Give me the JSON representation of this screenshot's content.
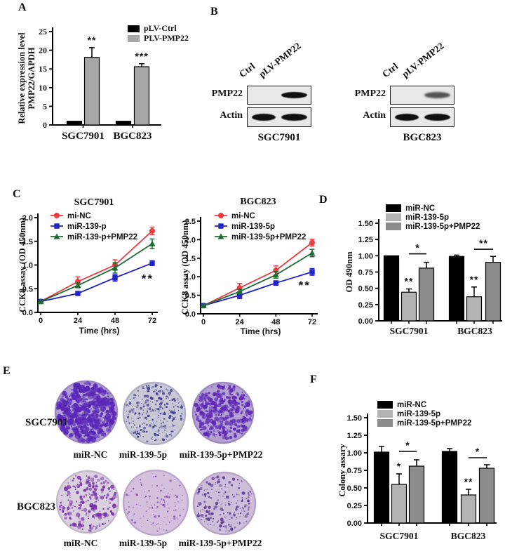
{
  "panels": {
    "A": {
      "label": "A"
    },
    "B": {
      "label": "B"
    },
    "C": {
      "label": "C"
    },
    "D": {
      "label": "D"
    },
    "E": {
      "label": "E"
    },
    "F": {
      "label": "F"
    }
  },
  "panel_b": {
    "blot_sets": [
      {
        "cell_line": "SGC7901",
        "lanes": [
          "Ctrl",
          "pLV-PMP22"
        ],
        "rows": [
          {
            "protein": "PMP22",
            "bands": [
              "none",
              "strong"
            ]
          },
          {
            "protein": "Actin",
            "bands": [
              "strong",
              "strong"
            ]
          }
        ]
      },
      {
        "cell_line": "BGC823",
        "lanes": [
          "Ctrl",
          "pLV-PMP22"
        ],
        "rows": [
          {
            "protein": "PMP22",
            "bands": [
              "none",
              "medium"
            ]
          },
          {
            "protein": "Actin",
            "bands": [
              "strong",
              "strong"
            ]
          }
        ]
      }
    ]
  },
  "panel_e": {
    "rows": [
      {
        "cell_line": "SGC7901",
        "dishes": [
          {
            "label": "miR-NC",
            "density": 520,
            "dot_min": 1.2,
            "dot_max": 4.5,
            "dot_color": "#5a27b8",
            "bg": "#b2a0d2",
            "rim": "#9c87c2",
            "seed": 11
          },
          {
            "label": "miR-139-5p",
            "density": 300,
            "dot_min": 0.6,
            "dot_max": 2.2,
            "dot_color": "#3c3c94",
            "bg": "#c9c9d6",
            "rim": "#b0b0c4",
            "seed": 22
          },
          {
            "label": "miR-139-5p+PMP22",
            "density": 380,
            "dot_min": 1.0,
            "dot_max": 3.4,
            "dot_color": "#6029b8",
            "bg": "#b3a1d0",
            "rim": "#9d88c0",
            "seed": 33
          }
        ]
      },
      {
        "cell_line": "BGC823",
        "dishes": [
          {
            "label": "miR-NC",
            "density": 240,
            "dot_min": 0.8,
            "dot_max": 3.2,
            "dot_color": "#7a2fae",
            "bg": "#d9d1de",
            "rim": "#c4b8cc",
            "seed": 44
          },
          {
            "label": "miR-139-5p",
            "density": 120,
            "dot_min": 0.6,
            "dot_max": 1.8,
            "dot_color": "#8a4cae",
            "bg": "#d5c0de",
            "rim": "#bfa6cc",
            "seed": 55
          },
          {
            "label": "miR-139-5p+PMP22",
            "density": 210,
            "dot_min": 0.7,
            "dot_max": 2.4,
            "dot_color": "#5f3a9a",
            "bg": "#cfbeda",
            "rim": "#b9a4c8",
            "seed": 66
          }
        ]
      }
    ]
  },
  "chart_data": [
    {
      "id": "A",
      "type": "bar",
      "categories": [
        "SGC7901",
        "BGC823"
      ],
      "series": [
        {
          "name": "pLV-Ctrl",
          "color": "#000000",
          "values": [
            1.0,
            1.0
          ],
          "errors": [
            0,
            0
          ]
        },
        {
          "name": "PLV-PMP22",
          "color": "#a6a6a6",
          "values": [
            18.1,
            15.6
          ],
          "errors": [
            2.6,
            0.8
          ]
        }
      ],
      "ylabel": [
        "Relative expression level",
        "PMP22/GAPDH"
      ],
      "ylim": [
        0,
        25
      ],
      "yticks": [
        "0",
        "5",
        "10",
        "15",
        "20",
        "25"
      ],
      "sig": [
        {
          "category": 0,
          "series": 1,
          "text": "**"
        },
        {
          "category": 1,
          "series": 1,
          "text": "***"
        }
      ]
    },
    {
      "id": "C1",
      "type": "line",
      "title": "SGC7901",
      "x": [
        0,
        24,
        48,
        72
      ],
      "xlabel": "Time (hrs)",
      "ylabel": "CCK8 assay (OD 450nm)",
      "ylim": [
        0,
        2.0
      ],
      "yticks": [
        "0.0",
        "0.5",
        "1.0",
        "1.5",
        "2.0"
      ],
      "series": [
        {
          "name": "mi-NC",
          "color": "#ee3a41",
          "marker": "circle",
          "values": [
            0.23,
            0.65,
            1.0,
            1.72
          ],
          "errors": [
            0.03,
            0.1,
            0.11,
            0.08
          ]
        },
        {
          "name": "miR-139-p",
          "color": "#2023c8",
          "marker": "square",
          "values": [
            0.23,
            0.4,
            0.73,
            1.04
          ],
          "errors": [
            0.02,
            0.03,
            0.07,
            0.05
          ]
        },
        {
          "name": "miR-139-p+PMP22",
          "color": "#1d6b35",
          "marker": "triangle",
          "values": [
            0.23,
            0.57,
            0.94,
            1.45
          ],
          "errors": [
            0.02,
            0.05,
            0.11,
            0.1
          ]
        }
      ],
      "annotation": {
        "text": "**",
        "x": 69,
        "y": 0.63
      }
    },
    {
      "id": "C2",
      "type": "line",
      "title": "BGC823",
      "x": [
        0,
        24,
        48,
        72
      ],
      "xlabel": "Time (hrs)",
      "ylabel": "CCK8 assay (OD 450nm)",
      "ylim": [
        0,
        2.5
      ],
      "yticks": [
        "0.0",
        "0.5",
        "1.0",
        "1.5",
        "2.0",
        "2.5"
      ],
      "series": [
        {
          "name": "mi-NC",
          "color": "#ee3a41",
          "marker": "circle",
          "values": [
            0.22,
            0.7,
            1.17,
            1.92
          ],
          "errors": [
            0.04,
            0.12,
            0.12,
            0.09
          ]
        },
        {
          "name": "miR-139-5p",
          "color": "#2023c8",
          "marker": "square",
          "values": [
            0.22,
            0.5,
            0.83,
            1.13
          ],
          "errors": [
            0.03,
            0.09,
            0.06,
            0.09
          ]
        },
        {
          "name": "miR-139-5p+PMP22",
          "color": "#1d6b35",
          "marker": "triangle",
          "values": [
            0.22,
            0.6,
            1.05,
            1.64
          ],
          "errors": [
            0.03,
            0.06,
            0.09,
            0.1
          ]
        }
      ],
      "annotation": {
        "text": "**",
        "x": 67,
        "y": 0.66
      }
    },
    {
      "id": "D",
      "type": "bar",
      "categories": [
        "SGC7901",
        "BGC823"
      ],
      "series": [
        {
          "name": "miR-NC",
          "color": "#000000",
          "values": [
            1.0,
            0.99
          ],
          "errors": [
            0.01,
            0.02
          ]
        },
        {
          "name": "miR-139-5p",
          "color": "#b3b3b3",
          "values": [
            0.44,
            0.37
          ],
          "errors": [
            0.05,
            0.15
          ]
        },
        {
          "name": "miR-139-5p+PMP22",
          "color": "#8c8c8c",
          "values": [
            0.81,
            0.9
          ],
          "errors": [
            0.09,
            0.09
          ]
        }
      ],
      "ylabel": "OD 490nm",
      "ylim": [
        0,
        1.5
      ],
      "yticks": [
        "0.00",
        "0.25",
        "0.50",
        "0.75",
        "1.00",
        "1.25",
        "1.50"
      ],
      "sig": [
        {
          "category": 0,
          "series": 1,
          "text": "**"
        },
        {
          "category": 1,
          "series": 1,
          "text": "**"
        }
      ],
      "brackets": [
        {
          "category": 0,
          "from": 1,
          "to": 2,
          "y": 1.03,
          "text": "*"
        },
        {
          "category": 1,
          "from": 1,
          "to": 2,
          "y": 1.1,
          "text": "**"
        }
      ]
    },
    {
      "id": "F",
      "type": "bar",
      "categories": [
        "SGC7901",
        "BGC823"
      ],
      "series": [
        {
          "name": "miR-NC",
          "color": "#000000",
          "values": [
            1.01,
            1.02
          ],
          "errors": [
            0.08,
            0.04
          ]
        },
        {
          "name": "miR-139-5p",
          "color": "#b3b3b3",
          "values": [
            0.55,
            0.4
          ],
          "errors": [
            0.15,
            0.08
          ]
        },
        {
          "name": "miR-139-5p+PMP22",
          "color": "#8c8c8c",
          "values": [
            0.81,
            0.78
          ],
          "errors": [
            0.09,
            0.05
          ]
        }
      ],
      "ylabel": "Colony assary",
      "ylim": [
        0,
        1.5
      ],
      "yticks": [
        "0.00",
        "0.25",
        "0.50",
        "0.75",
        "1.00",
        "1.25",
        "1.50"
      ],
      "sig": [
        {
          "category": 0,
          "series": 1,
          "text": "*"
        },
        {
          "category": 1,
          "series": 1,
          "text": "**"
        }
      ],
      "brackets": [
        {
          "category": 0,
          "from": 1,
          "to": 2,
          "y": 1.02,
          "text": "*"
        },
        {
          "category": 1,
          "from": 1,
          "to": 2,
          "y": 0.93,
          "text": "*"
        }
      ]
    }
  ]
}
